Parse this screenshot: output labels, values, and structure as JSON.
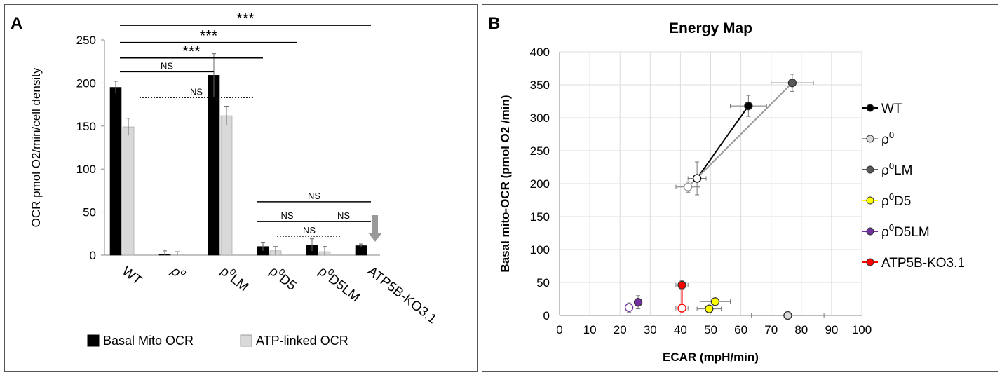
{
  "chart_data": [
    {
      "type": "bar",
      "panel_label": "A",
      "title": "",
      "ylabel": "OCR pmol O2/min/cell density",
      "xlabel": "",
      "ylim": [
        0,
        250
      ],
      "yticks": [
        "0",
        "50",
        "100",
        "150",
        "200",
        "250"
      ],
      "categories": [
        "WT",
        "ρo",
        "ρ0LM",
        "ρ0D5",
        "ρ0D5LM",
        "ATP5B-KO3.1"
      ],
      "category_parts": [
        {
          "base": "WT",
          "sup": ""
        },
        {
          "base": "ρ",
          "sup": "o"
        },
        {
          "base": "ρ",
          "sup": "0",
          "rest": "LM"
        },
        {
          "base": "ρ",
          "sup": "0",
          "rest": "D5"
        },
        {
          "base": "ρ",
          "sup": "0",
          "rest": "D5LM"
        },
        {
          "base": "ATP5B-KO3.1",
          "sup": ""
        }
      ],
      "series": [
        {
          "name": "Basal Mito OCR",
          "color": "#000000",
          "values": [
            195,
            1,
            209,
            10,
            12,
            11
          ],
          "errors": [
            7,
            4,
            25,
            5,
            7,
            2
          ]
        },
        {
          "name": "ATP-linked OCR",
          "color": "#d9d9d9",
          "values": [
            149,
            1,
            162,
            5,
            4,
            null
          ],
          "errors": [
            10,
            3,
            11,
            5,
            6,
            null
          ]
        }
      ],
      "legend": {
        "position": "bottom",
        "items": [
          "Basal Mito OCR",
          "ATP-linked OCR"
        ]
      },
      "annotations": [
        {
          "text": "***",
          "from": 0,
          "to": 5,
          "level": 267
        },
        {
          "text": "***",
          "from": 0,
          "to": 3.5,
          "level": 247
        },
        {
          "text": "***",
          "from": 0,
          "to": 2.8,
          "level": 229
        },
        {
          "text": "NS",
          "from": 0,
          "to": 1.8,
          "level": 213
        },
        {
          "text": "NS",
          "from": 0.4,
          "to": 2.6,
          "level": 183,
          "dotted": true
        },
        {
          "text": "NS",
          "from": 2.8,
          "to": 5.0,
          "level": 62
        },
        {
          "text": "NS",
          "from": 2.8,
          "to": 3.9,
          "level": 39
        },
        {
          "text": "NS",
          "from": 4.0,
          "to": 5.0,
          "level": 39
        },
        {
          "text": "NS",
          "from": 3.2,
          "to": 4.4,
          "level": 22,
          "dotted": true
        }
      ],
      "arrow_note": "down arrow above ATP5B-KO3.1"
    },
    {
      "type": "scatter",
      "panel_label": "B",
      "title": "Energy Map",
      "xlabel": "ECAR (mpH/min)",
      "ylabel": "Basal mito-OCR (pmol O2 /min)",
      "xlim": [
        0,
        100
      ],
      "ylim": [
        0,
        400
      ],
      "xticks": [
        "0",
        "10",
        "20",
        "30",
        "40",
        "50",
        "60",
        "70",
        "80",
        "90",
        "100"
      ],
      "yticks": [
        "0",
        "50",
        "100",
        "150",
        "200",
        "250",
        "300",
        "350",
        "400"
      ],
      "grid": true,
      "legend": {
        "position": "right"
      },
      "series": [
        {
          "name": "WT",
          "label_base": "WT",
          "label_sup": "",
          "label_rest": "",
          "color": "#000000",
          "open_color": "#000000",
          "points": [
            {
              "x": 62.5,
              "y": 318,
              "filled": true,
              "xerr": 6,
              "yerr": 16
            },
            {
              "x": 45.5,
              "y": 208,
              "filled": false,
              "xerr": 3,
              "yerr": 25
            }
          ]
        },
        {
          "name": "ρ0",
          "label_base": "ρ",
          "label_sup": "0",
          "label_rest": "",
          "color": "#d9d9d9",
          "open_color": "#999999",
          "points": [
            {
              "x": 75.5,
              "y": 0,
              "filled": true,
              "xerr": 12,
              "yerr": 0
            }
          ]
        },
        {
          "name": "ρ0LM",
          "label_base": "ρ",
          "label_sup": "0",
          "label_rest": "LM",
          "color": "#595959",
          "open_color": "#999999",
          "points": [
            {
              "x": 77,
              "y": 353,
              "filled": true,
              "xerr": 7,
              "yerr": 13
            },
            {
              "x": 42.5,
              "y": 195,
              "filled": false,
              "xerr": 4,
              "yerr": 8
            }
          ]
        },
        {
          "name": "ρ0D5",
          "label_base": "ρ",
          "label_sup": "0",
          "label_rest": "D5",
          "color": "#ffff00",
          "open_color": "#aaaa00",
          "points": [
            {
              "x": 51.5,
              "y": 21,
              "filled": true,
              "xerr": 5,
              "yerr": 5
            },
            {
              "x": 49.5,
              "y": 10,
              "filled": true,
              "xerr": 4,
              "yerr": 4
            }
          ]
        },
        {
          "name": "ρ0D5LM",
          "label_base": "ρ",
          "label_sup": "0",
          "label_rest": "D5LM",
          "color": "#7030a0",
          "open_color": "#7030a0",
          "points": [
            {
              "x": 26,
              "y": 20,
              "filled": true,
              "xerr": 1,
              "yerr": 10
            },
            {
              "x": 23,
              "y": 12,
              "filled": false,
              "xerr": 1,
              "yerr": 7
            }
          ]
        },
        {
          "name": "ATP5B-KO3.1",
          "label_base": "ATP5B-KO3.1",
          "label_sup": "",
          "label_rest": "",
          "color": "#ff0000",
          "open_color": "#ff0000",
          "points": [
            {
              "x": 40.5,
              "y": 46,
              "filled": true,
              "xerr": 2,
              "yerr": 7
            },
            {
              "x": 40.5,
              "y": 11,
              "filled": false,
              "xerr": 2,
              "yerr": 3
            }
          ]
        }
      ],
      "lines": [
        {
          "color": "#000000",
          "from": [
            45.5,
            208
          ],
          "to": [
            62.5,
            318
          ]
        },
        {
          "color": "#999999",
          "from": [
            42.5,
            195
          ],
          "to": [
            77,
            353
          ]
        },
        {
          "color": "#ff0000",
          "from": [
            40.5,
            11
          ],
          "to": [
            40.5,
            46
          ]
        }
      ]
    }
  ]
}
